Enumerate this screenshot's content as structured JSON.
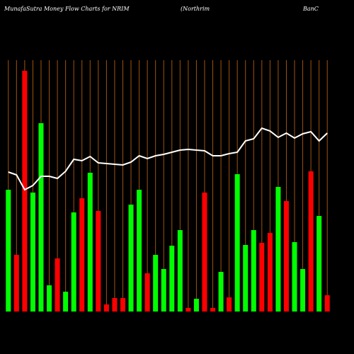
{
  "chart_data": {
    "type": "bar",
    "title": [
      "MunafaSutra  Money Flow  Charts for NRIM",
      "(Northrim",
      "BanC"
    ],
    "categories": [
      null,
      null,
      null,
      null,
      null,
      null,
      null,
      null,
      null,
      null,
      null,
      null,
      null,
      null,
      null,
      null,
      null,
      null,
      null,
      null,
      null,
      null,
      null,
      null,
      null,
      null,
      null,
      null,
      null,
      null,
      null,
      null,
      null,
      null,
      null,
      null,
      null,
      null,
      null,
      null
    ],
    "values": [
      172,
      80,
      340,
      168,
      266,
      37,
      75,
      28,
      140,
      160,
      196,
      142,
      10,
      19,
      19,
      151,
      172,
      54,
      80,
      60,
      93,
      115,
      5,
      18,
      168,
      5,
      56,
      20,
      194,
      94,
      115,
      97,
      111,
      176,
      156,
      98,
      60,
      198,
      135,
      23
    ],
    "colors": [
      "#00ff00",
      "#ff0000",
      "#ff0000",
      "#00ff00",
      "#00ff00",
      "#00ff00",
      "#ff0000",
      "#00ff00",
      "#00ff00",
      "#ff0000",
      "#00ff00",
      "#ff0000",
      "#ff0000",
      "#ff0000",
      "#ff0000",
      "#00ff00",
      "#00ff00",
      "#ff0000",
      "#00ff00",
      "#00ff00",
      "#00ff00",
      "#00ff00",
      "#ff0000",
      "#00ff00",
      "#ff0000",
      "#ff0000",
      "#00ff00",
      "#ff0000",
      "#00ff00",
      "#00ff00",
      "#00ff00",
      "#ff0000",
      "#ff0000",
      "#00ff00",
      "#ff0000",
      "#00ff00",
      "#00ff00",
      "#ff0000",
      "#00ff00",
      "#ff0000"
    ],
    "line_values": [
      197,
      193,
      172,
      178,
      191,
      191,
      188,
      198,
      215,
      213,
      219,
      210,
      209,
      208,
      207,
      211,
      220,
      216,
      220,
      222,
      225,
      228,
      229,
      228,
      227,
      220,
      220,
      223,
      225,
      241,
      244,
      259,
      255,
      246,
      252,
      245,
      251,
      254,
      241,
      252
    ],
    "line_color": "#ffffff",
    "grid_color": "#a0520f"
  }
}
